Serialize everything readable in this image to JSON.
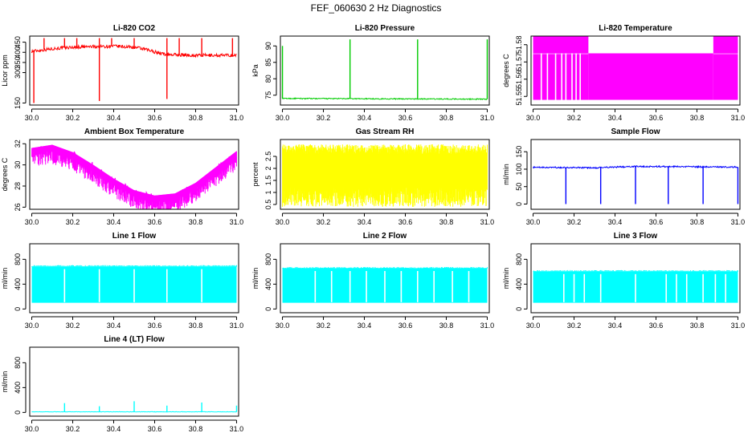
{
  "figure_title": "FEF_060630  2 Hz Diagnostics",
  "chart_data": [
    {
      "type": "line",
      "title": "Li-820 CO2",
      "xlabel": "",
      "ylabel": "Licor ppm",
      "color": "#ff0000",
      "xlim": [
        29.99,
        31.01
      ],
      "ylim": [
        140,
        480
      ],
      "yticks": [
        150,
        300,
        350,
        400,
        450
      ],
      "x_ticks": [
        "30.0",
        "30.2",
        "30.4",
        "30.6",
        "30.8",
        "31.0"
      ],
      "baseline": [
        [
          30.0,
          405
        ],
        [
          30.1,
          418
        ],
        [
          30.2,
          425
        ],
        [
          30.3,
          428
        ],
        [
          30.4,
          430
        ],
        [
          30.5,
          425
        ],
        [
          30.55,
          415
        ],
        [
          30.65,
          390
        ],
        [
          30.8,
          385
        ],
        [
          31.0,
          385
        ]
      ],
      "noise": 8,
      "spikes_up": [
        [
          30.06,
          470
        ],
        [
          30.16,
          470
        ],
        [
          30.22,
          470
        ],
        [
          30.33,
          470
        ],
        [
          30.39,
          470
        ],
        [
          30.5,
          470
        ],
        [
          30.66,
          470
        ],
        [
          30.72,
          470
        ],
        [
          30.83,
          470
        ],
        [
          30.98,
          470
        ]
      ],
      "spikes_down": [
        [
          30.01,
          150
        ],
        [
          30.33,
          160
        ],
        [
          30.66,
          170
        ]
      ]
    },
    {
      "type": "line",
      "title": "Li-820 Pressure",
      "xlabel": "",
      "ylabel": "kPa",
      "color": "#00cc00",
      "xlim": [
        29.99,
        31.01
      ],
      "ylim": [
        72,
        93
      ],
      "yticks": [
        75,
        80,
        85,
        90
      ],
      "x_ticks": [
        "30.0",
        "30.2",
        "30.4",
        "30.6",
        "30.8",
        "31.0"
      ],
      "baseline": [
        [
          30.0,
          74.0
        ],
        [
          31.0,
          73.8
        ]
      ],
      "noise": 0.15,
      "spikes_up": [
        [
          30.0,
          90
        ],
        [
          30.33,
          92
        ],
        [
          30.66,
          92
        ],
        [
          31.0,
          92
        ]
      ],
      "spikes_down": []
    },
    {
      "type": "line",
      "title": "Li-820 Temperature",
      "xlabel": "",
      "ylabel": "degrees C",
      "color": "#ff00ff",
      "xlim": [
        29.99,
        31.01
      ],
      "ylim": [
        51.545,
        51.585
      ],
      "yticks": [
        51.55,
        51.56,
        51.57,
        51.58
      ],
      "x_ticks": [
        "30.0",
        "30.2",
        "30.4",
        "30.6",
        "30.8",
        "31.0"
      ],
      "levels": {
        "high": 51.582,
        "mid": 51.575,
        "low": 51.548
      },
      "segments": [
        {
          "from": 30.0,
          "to": 30.27,
          "state": "high"
        },
        {
          "from": 30.27,
          "to": 30.88,
          "state": "mid"
        },
        {
          "from": 30.88,
          "to": 31.0,
          "state": "high"
        }
      ],
      "drops": [
        30.04,
        30.07,
        30.11,
        30.14,
        30.16,
        30.19,
        30.21,
        30.23
      ]
    },
    {
      "type": "line",
      "title": "Ambient Box Temperature",
      "xlabel": "",
      "ylabel": "degrees C",
      "color": "#ff00ff",
      "xlim": [
        29.99,
        31.01
      ],
      "ylim": [
        25.8,
        32.4
      ],
      "yticks": [
        26,
        28,
        30,
        32
      ],
      "x_ticks": [
        "30.0",
        "30.2",
        "30.4",
        "30.6",
        "30.8",
        "31.0"
      ],
      "baseline": [
        [
          30.0,
          31.6
        ],
        [
          30.1,
          31.9
        ],
        [
          30.2,
          31.2
        ],
        [
          30.3,
          30.0
        ],
        [
          30.4,
          28.7
        ],
        [
          30.5,
          27.6
        ],
        [
          30.6,
          27.1
        ],
        [
          30.7,
          27.3
        ],
        [
          30.8,
          28.3
        ],
        [
          30.9,
          29.8
        ],
        [
          31.0,
          31.3
        ]
      ],
      "noise": 0.25,
      "band_down": 1.0
    },
    {
      "type": "line",
      "title": "Gas Stream RH",
      "xlabel": "",
      "ylabel": "percent",
      "color": "#ffff00",
      "xlim": [
        29.99,
        31.01
      ],
      "ylim": [
        0.3,
        3.2
      ],
      "yticks": [
        0.5,
        1.0,
        1.5,
        2.0,
        2.5
      ],
      "x_ticks": [
        "30.0",
        "30.2",
        "30.4",
        "30.6",
        "30.8",
        "31.0"
      ],
      "band_low": [
        0.4,
        1.2
      ],
      "band_high": [
        2.6,
        3.0
      ]
    },
    {
      "type": "line",
      "title": "Sample Flow",
      "xlabel": "",
      "ylabel": "ml/min",
      "color": "#0000ff",
      "xlim": [
        29.99,
        31.01
      ],
      "ylim": [
        -15,
        185
      ],
      "yticks": [
        0,
        50,
        100,
        150
      ],
      "x_ticks": [
        "30.0",
        "30.2",
        "30.4",
        "30.6",
        "30.8",
        "31.0"
      ],
      "baseline": [
        [
          30.0,
          105
        ],
        [
          30.3,
          104
        ],
        [
          30.5,
          108
        ],
        [
          31.0,
          106
        ]
      ],
      "noise": 2,
      "spikes_down": [
        [
          30.16,
          0
        ],
        [
          30.33,
          0
        ],
        [
          30.5,
          0
        ],
        [
          30.66,
          0
        ],
        [
          30.83,
          0
        ],
        [
          31.0,
          0
        ]
      ]
    },
    {
      "type": "line",
      "title": "Line 1 Flow",
      "xlabel": "",
      "ylabel": "ml/min",
      "color": "#00ffff",
      "xlim": [
        29.99,
        31.01
      ],
      "ylim": [
        -60,
        1050
      ],
      "yticks": [
        0,
        400,
        800
      ],
      "x_ticks": [
        "30.0",
        "30.2",
        "30.4",
        "30.6",
        "30.8",
        "31.0"
      ],
      "band_low": [
        100,
        110
      ],
      "band_top": 680,
      "gaps": [
        30.16,
        30.33,
        30.5,
        30.66,
        30.83
      ]
    },
    {
      "type": "line",
      "title": "Line 2 Flow",
      "xlabel": "",
      "ylabel": "ml/min",
      "color": "#00ffff",
      "xlim": [
        29.99,
        31.01
      ],
      "ylim": [
        -60,
        1050
      ],
      "yticks": [
        0,
        400,
        800
      ],
      "x_ticks": [
        "30.0",
        "30.2",
        "30.4",
        "30.6",
        "30.8",
        "31.0"
      ],
      "band_low": [
        100,
        110
      ],
      "band_top": 650,
      "gaps": [
        30.16,
        30.24,
        30.33,
        30.41,
        30.5,
        30.58,
        30.66,
        30.74,
        30.83,
        30.91
      ]
    },
    {
      "type": "line",
      "title": "Line 3 Flow",
      "xlabel": "",
      "ylabel": "ml/min",
      "color": "#00ffff",
      "xlim": [
        29.99,
        31.01
      ],
      "ylim": [
        -60,
        1050
      ],
      "yticks": [
        0,
        400,
        800
      ],
      "x_ticks": [
        "30.0",
        "30.2",
        "30.4",
        "30.6",
        "30.8",
        "31.0"
      ],
      "band_low": [
        100,
        110
      ],
      "band_top": 600,
      "gaps": [
        30.15,
        30.2,
        30.25,
        30.33,
        30.5,
        30.65,
        30.7,
        30.75,
        30.83,
        30.89,
        30.94
      ]
    },
    {
      "type": "line",
      "title": "Line 4 (LT) Flow",
      "xlabel": "",
      "ylabel": "ml/min",
      "color": "#00ffff",
      "xlim": [
        29.99,
        31.01
      ],
      "ylim": [
        -60,
        1050
      ],
      "yticks": [
        0,
        400,
        800
      ],
      "x_ticks": [
        "30.0",
        "30.2",
        "30.4",
        "30.6",
        "30.8",
        "31.0"
      ],
      "baseline": [
        [
          30.0,
          10
        ],
        [
          31.0,
          10
        ]
      ],
      "noise": 3,
      "spikes_up": [
        [
          30.16,
          150
        ],
        [
          30.33,
          100
        ],
        [
          30.5,
          180
        ],
        [
          30.66,
          110
        ],
        [
          30.83,
          160
        ],
        [
          31.0,
          110
        ]
      ]
    }
  ]
}
